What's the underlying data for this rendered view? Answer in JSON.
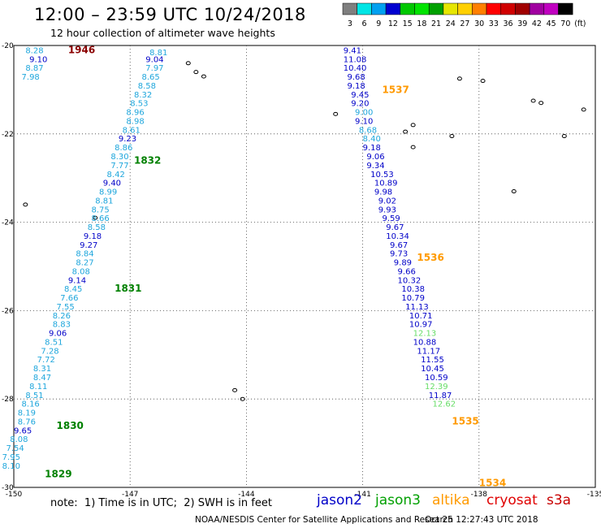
{
  "header": {
    "title": "12:00 – 23:59 UTC 10/24/2018",
    "subtitle": "12 hour collection of altimeter wave heights"
  },
  "colorbar": {
    "ticks": [
      "3",
      "6",
      "9",
      "12",
      "15",
      "18",
      "21",
      "24",
      "27",
      "30",
      "33",
      "36",
      "39",
      "42",
      "45",
      "70"
    ],
    "unit": "(ft)",
    "colors": [
      "#7f7f7f",
      "#00e5e5",
      "#00a0f0",
      "#0000d0",
      "#00c800",
      "#00e400",
      "#00a000",
      "#e6e600",
      "#ffd000",
      "#ff8000",
      "#ff0000",
      "#d00000",
      "#a00000",
      "#a000a0",
      "#c000c0",
      "#000000"
    ]
  },
  "footer": {
    "note": "note:  1) Time is in UTC;  2) SWH is in feet",
    "legend": [
      {
        "name": "jason2",
        "color": "#0000c8"
      },
      {
        "name": "jason3",
        "color": "#00a000"
      },
      {
        "name": "altika",
        "color": "#ff9a00"
      },
      {
        "name": "cryosat",
        "color": "#e00000"
      },
      {
        "name": "s3a",
        "color": "#c80000"
      }
    ],
    "credit": "NOAA/NESDIS Center for Satellite Applications and Research",
    "timestamp": "Oct 25 12:27:43 UTC 2018"
  },
  "chart_data": {
    "type": "scatter",
    "title": "12:00 – 23:59 UTC 10/24/2018",
    "subtitle": "12 hour collection of altimeter wave heights",
    "xlim": [
      -150,
      -135
    ],
    "ylim": [
      -30,
      -20
    ],
    "x_ticks": [
      "-150",
      "-147",
      "-144",
      "-141",
      "-138",
      "-135"
    ],
    "y_ticks": [
      "-20",
      "-22",
      "-24",
      "-26",
      "-28",
      "-30"
    ],
    "grid": true,
    "units": "ft",
    "time_labels": [
      {
        "text": "1946",
        "x": -148.6,
        "y": -20.1,
        "color": "#8b0000"
      },
      {
        "text": "1832",
        "x": -146.9,
        "y": -22.6,
        "color": "#008000"
      },
      {
        "text": "1831",
        "x": -147.4,
        "y": -25.5,
        "color": "#008000"
      },
      {
        "text": "1830",
        "x": -148.9,
        "y": -28.6,
        "color": "#008000"
      },
      {
        "text": "1829",
        "x": -149.2,
        "y": -29.7,
        "color": "#008000"
      },
      {
        "text": "1537",
        "x": -140.5,
        "y": -21.0,
        "color": "#ff9a00"
      },
      {
        "text": "1536",
        "x": -139.6,
        "y": -24.8,
        "color": "#ff9a00"
      },
      {
        "text": "1535",
        "x": -138.7,
        "y": -28.5,
        "color": "#ff9a00"
      },
      {
        "text": "1534",
        "x": -138.0,
        "y": -29.9,
        "color": "#ff9a00"
      }
    ],
    "series": [
      {
        "name": "cryosat",
        "points": [
          {
            "v": "8.28",
            "x": -149.7,
            "y": -20.1,
            "c": "#1ea6dc"
          },
          {
            "v": "9.10",
            "x": -149.6,
            "y": -20.3,
            "c": "#0000c8"
          },
          {
            "v": "8.87",
            "x": -149.7,
            "y": -20.5,
            "c": "#1ea6dc"
          },
          {
            "v": "7.98",
            "x": -149.8,
            "y": -20.7,
            "c": "#1ea6dc"
          }
        ]
      },
      {
        "name": "jason3",
        "points": [
          {
            "v": "8.81",
            "x": -146.5,
            "y": -20.15,
            "c": "#1ea6dc"
          },
          {
            "v": "9.04",
            "x": -146.6,
            "y": -20.3,
            "c": "#0000c8"
          },
          {
            "v": "7.97",
            "x": -146.6,
            "y": -20.5,
            "c": "#1ea6dc"
          },
          {
            "v": "8.65",
            "x": -146.7,
            "y": -20.7,
            "c": "#1ea6dc"
          },
          {
            "v": "8.58",
            "x": -146.8,
            "y": -20.9,
            "c": "#1ea6dc"
          },
          {
            "v": "8.32",
            "x": -146.9,
            "y": -21.1,
            "c": "#1ea6dc"
          },
          {
            "v": "8.53",
            "x": -147.0,
            "y": -21.3,
            "c": "#1ea6dc"
          },
          {
            "v": "8.96",
            "x": -147.1,
            "y": -21.5,
            "c": "#1ea6dc"
          },
          {
            "v": "8.98",
            "x": -147.1,
            "y": -21.7,
            "c": "#1ea6dc"
          },
          {
            "v": "8.61",
            "x": -147.2,
            "y": -21.9,
            "c": "#1ea6dc"
          },
          {
            "v": "9.23",
            "x": -147.3,
            "y": -22.1,
            "c": "#0000c8"
          },
          {
            "v": "8.86",
            "x": -147.4,
            "y": -22.3,
            "c": "#1ea6dc"
          },
          {
            "v": "8.30",
            "x": -147.5,
            "y": -22.5,
            "c": "#1ea6dc"
          },
          {
            "v": "7.77",
            "x": -147.5,
            "y": -22.7,
            "c": "#1ea6dc"
          },
          {
            "v": "8.42",
            "x": -147.6,
            "y": -22.9,
            "c": "#1ea6dc"
          },
          {
            "v": "9.40",
            "x": -147.7,
            "y": -23.1,
            "c": "#0000c8"
          },
          {
            "v": "8.99",
            "x": -147.8,
            "y": -23.3,
            "c": "#1ea6dc"
          },
          {
            "v": "8.81",
            "x": -147.9,
            "y": -23.5,
            "c": "#1ea6dc"
          },
          {
            "v": "8.75",
            "x": -148.0,
            "y": -23.7,
            "c": "#1ea6dc"
          },
          {
            "v": "8.66",
            "x": -148.0,
            "y": -23.9,
            "c": "#1ea6dc"
          },
          {
            "v": "8.58",
            "x": -148.1,
            "y": -24.1,
            "c": "#1ea6dc"
          },
          {
            "v": "9.18",
            "x": -148.2,
            "y": -24.3,
            "c": "#0000c8"
          },
          {
            "v": "9.27",
            "x": -148.3,
            "y": -24.5,
            "c": "#0000c8"
          },
          {
            "v": "8.84",
            "x": -148.4,
            "y": -24.7,
            "c": "#1ea6dc"
          },
          {
            "v": "8.27",
            "x": -148.4,
            "y": -24.9,
            "c": "#1ea6dc"
          },
          {
            "v": "8.08",
            "x": -148.5,
            "y": -25.1,
            "c": "#1ea6dc"
          },
          {
            "v": "9.14",
            "x": -148.6,
            "y": -25.3,
            "c": "#0000c8"
          },
          {
            "v": "8.45",
            "x": -148.7,
            "y": -25.5,
            "c": "#1ea6dc"
          },
          {
            "v": "7.66",
            "x": -148.8,
            "y": -25.7,
            "c": "#1ea6dc"
          },
          {
            "v": "7.55",
            "x": -148.9,
            "y": -25.9,
            "c": "#1ea6dc"
          },
          {
            "v": "8.26",
            "x": -149.0,
            "y": -26.1,
            "c": "#1ea6dc"
          },
          {
            "v": "8.83",
            "x": -149.0,
            "y": -26.3,
            "c": "#1ea6dc"
          },
          {
            "v": "9.06",
            "x": -149.1,
            "y": -26.5,
            "c": "#0000c8"
          },
          {
            "v": "8.51",
            "x": -149.2,
            "y": -26.7,
            "c": "#1ea6dc"
          },
          {
            "v": "7.28",
            "x": -149.3,
            "y": -26.9,
            "c": "#1ea6dc"
          },
          {
            "v": "7.72",
            "x": -149.4,
            "y": -27.1,
            "c": "#1ea6dc"
          },
          {
            "v": "8.31",
            "x": -149.5,
            "y": -27.3,
            "c": "#1ea6dc"
          },
          {
            "v": "8.47",
            "x": -149.5,
            "y": -27.5,
            "c": "#1ea6dc"
          },
          {
            "v": "8.11",
            "x": -149.6,
            "y": -27.7,
            "c": "#1ea6dc"
          },
          {
            "v": "8.51",
            "x": -149.7,
            "y": -27.9,
            "c": "#1ea6dc"
          },
          {
            "v": "8.16",
            "x": -149.8,
            "y": -28.1,
            "c": "#1ea6dc"
          },
          {
            "v": "8.19",
            "x": -149.9,
            "y": -28.3,
            "c": "#1ea6dc"
          },
          {
            "v": "8.76",
            "x": -149.9,
            "y": -28.5,
            "c": "#1ea6dc"
          },
          {
            "v": "9.65",
            "x": -150.0,
            "y": -28.7,
            "c": "#0000c8"
          },
          {
            "v": "8.08",
            "x": -150.1,
            "y": -28.9,
            "c": "#1ea6dc"
          },
          {
            "v": "7.54",
            "x": -150.2,
            "y": -29.1,
            "c": "#1ea6dc"
          },
          {
            "v": "7.95",
            "x": -150.3,
            "y": -29.3,
            "c": "#1ea6dc"
          },
          {
            "v": "8.10",
            "x": -150.3,
            "y": -29.5,
            "c": "#1ea6dc"
          }
        ]
      },
      {
        "name": "altika",
        "points": [
          {
            "v": "9.41",
            "x": -141.5,
            "y": -20.1,
            "c": "#0000c8"
          },
          {
            "v": "11.08",
            "x": -141.5,
            "y": -20.3,
            "c": "#0000c8"
          },
          {
            "v": "10.40",
            "x": -141.5,
            "y": -20.5,
            "c": "#0000c8"
          },
          {
            "v": "9.68",
            "x": -141.4,
            "y": -20.7,
            "c": "#0000c8"
          },
          {
            "v": "9.18",
            "x": -141.4,
            "y": -20.9,
            "c": "#0000c8"
          },
          {
            "v": "9.45",
            "x": -141.3,
            "y": -21.1,
            "c": "#0000c8"
          },
          {
            "v": "9.20",
            "x": -141.3,
            "y": -21.3,
            "c": "#0000c8"
          },
          {
            "v": "9.00",
            "x": -141.2,
            "y": -21.5,
            "c": "#1ea6dc"
          },
          {
            "v": "9.10",
            "x": -141.2,
            "y": -21.7,
            "c": "#0000c8"
          },
          {
            "v": "8.68",
            "x": -141.1,
            "y": -21.9,
            "c": "#1ea6dc"
          },
          {
            "v": "8.40",
            "x": -141.0,
            "y": -22.1,
            "c": "#1ea6dc"
          },
          {
            "v": "9.18",
            "x": -141.0,
            "y": -22.3,
            "c": "#0000c8"
          },
          {
            "v": "9.06",
            "x": -140.9,
            "y": -22.5,
            "c": "#0000c8"
          },
          {
            "v": "9.34",
            "x": -140.9,
            "y": -22.7,
            "c": "#0000c8"
          },
          {
            "v": "10.53",
            "x": -140.8,
            "y": -22.9,
            "c": "#0000c8"
          },
          {
            "v": "10.89",
            "x": -140.7,
            "y": -23.1,
            "c": "#0000c8"
          },
          {
            "v": "9.98",
            "x": -140.7,
            "y": -23.3,
            "c": "#0000c8"
          },
          {
            "v": "9.02",
            "x": -140.6,
            "y": -23.5,
            "c": "#0000c8"
          },
          {
            "v": "9.93",
            "x": -140.6,
            "y": -23.7,
            "c": "#0000c8"
          },
          {
            "v": "9.59",
            "x": -140.5,
            "y": -23.9,
            "c": "#0000c8"
          },
          {
            "v": "9.67",
            "x": -140.4,
            "y": -24.1,
            "c": "#0000c8"
          },
          {
            "v": "10.34",
            "x": -140.4,
            "y": -24.3,
            "c": "#0000c8"
          },
          {
            "v": "9.67",
            "x": -140.3,
            "y": -24.5,
            "c": "#0000c8"
          },
          {
            "v": "9.73",
            "x": -140.3,
            "y": -24.7,
            "c": "#0000c8"
          },
          {
            "v": "9.89",
            "x": -140.2,
            "y": -24.9,
            "c": "#0000c8"
          },
          {
            "v": "9.66",
            "x": -140.1,
            "y": -25.1,
            "c": "#0000c8"
          },
          {
            "v": "10.32",
            "x": -140.1,
            "y": -25.3,
            "c": "#0000c8"
          },
          {
            "v": "10.38",
            "x": -140.0,
            "y": -25.5,
            "c": "#0000c8"
          },
          {
            "v": "10.79",
            "x": -140.0,
            "y": -25.7,
            "c": "#0000c8"
          },
          {
            "v": "11.13",
            "x": -139.9,
            "y": -25.9,
            "c": "#0000c8"
          },
          {
            "v": "10.71",
            "x": -139.8,
            "y": -26.1,
            "c": "#0000c8"
          },
          {
            "v": "10.97",
            "x": -139.8,
            "y": -26.3,
            "c": "#0000c8"
          },
          {
            "v": "12.13",
            "x": -139.7,
            "y": -26.5,
            "c": "#66dd66"
          },
          {
            "v": "10.88",
            "x": -139.7,
            "y": -26.7,
            "c": "#0000c8"
          },
          {
            "v": "11.17",
            "x": -139.6,
            "y": -26.9,
            "c": "#0000c8"
          },
          {
            "v": "11.55",
            "x": -139.5,
            "y": -27.1,
            "c": "#0000c8"
          },
          {
            "v": "10.45",
            "x": -139.5,
            "y": -27.3,
            "c": "#0000c8"
          },
          {
            "v": "10.59",
            "x": -139.4,
            "y": -27.5,
            "c": "#0000c8"
          },
          {
            "v": "12.39",
            "x": -139.4,
            "y": -27.7,
            "c": "#66dd66"
          },
          {
            "v": "11.87",
            "x": -139.3,
            "y": -27.9,
            "c": "#0000c8"
          },
          {
            "v": "12.62",
            "x": -139.2,
            "y": -28.1,
            "c": "#66dd66"
          }
        ]
      }
    ]
  }
}
